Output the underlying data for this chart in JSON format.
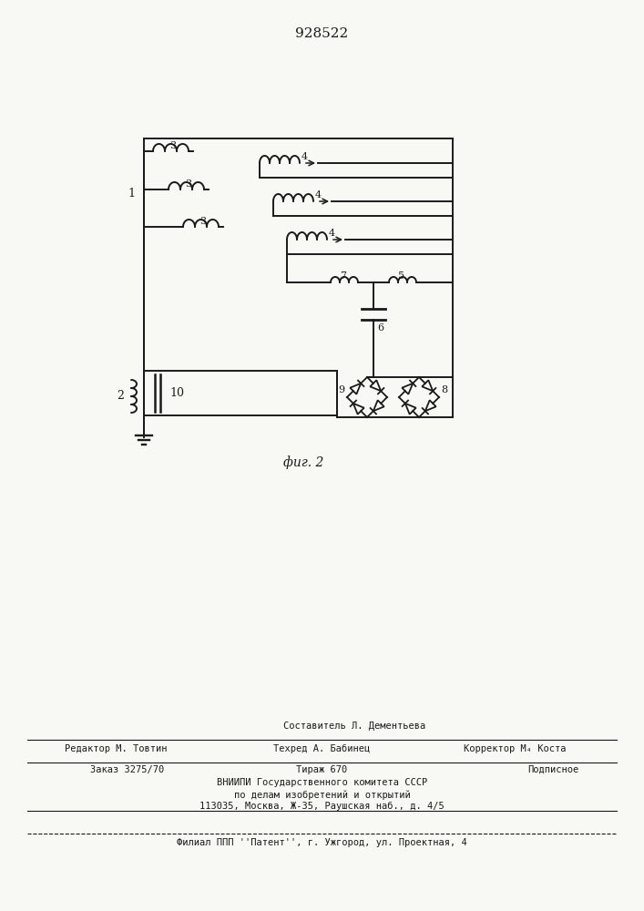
{
  "title": "928522",
  "fig_label": "фиг. 2",
  "background_color": "#f8f8f4",
  "line_color": "#1a1a1a",
  "text_color": "#1a1a1a",
  "editor_line": "Редактор М. Товтин",
  "composer_line": "Составитель Л. Дементьева",
  "tech_line": "Техред А. Бабинец",
  "corrector_line": "Корректор М₄ Коста",
  "order_line": "Заказ 3275/70",
  "tirazh_line": "Тираж 670",
  "podp_line": "Подписное",
  "vniip_line1": "ВНИИПИ Государственного комитета СССР",
  "vniip_line2": "по делам изобретений и открытий",
  "vniip_line3": "113035, Москва, Ж-35, Раушская наб., д. 4/5",
  "filial_line": "Филиал ППП ''Патент'', г. Ужгород, ул. Проектная, 4"
}
